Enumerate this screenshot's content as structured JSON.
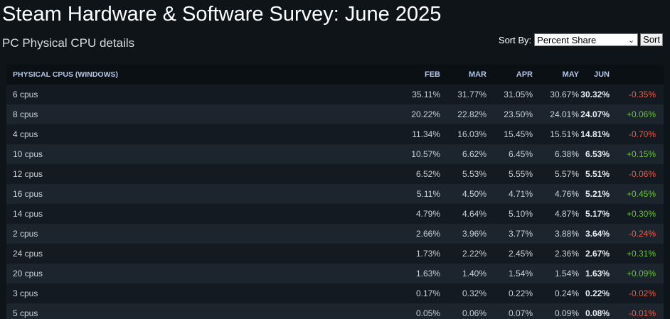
{
  "header": {
    "title": "Steam Hardware & Software Survey: June 2025",
    "subtitle": "PC Physical CPU details"
  },
  "sort": {
    "label": "Sort By:",
    "selected": "Percent Share",
    "button_label": "Sort"
  },
  "table": {
    "columns": {
      "name": "PHYSICAL CPUS (WINDOWS)",
      "feb": "FEB",
      "mar": "MAR",
      "apr": "APR",
      "may": "MAY",
      "jun": "JUN"
    },
    "rows": [
      {
        "name": "6 cpus",
        "feb": "35.11%",
        "mar": "31.77%",
        "apr": "31.05%",
        "may": "30.67%",
        "jun": "30.32%",
        "change": "-0.35%",
        "direction": "neg"
      },
      {
        "name": "8 cpus",
        "feb": "20.22%",
        "mar": "22.82%",
        "apr": "23.50%",
        "may": "24.01%",
        "jun": "24.07%",
        "change": "+0.06%",
        "direction": "pos"
      },
      {
        "name": "4 cpus",
        "feb": "11.34%",
        "mar": "16.03%",
        "apr": "15.45%",
        "may": "15.51%",
        "jun": "14.81%",
        "change": "-0.70%",
        "direction": "neg"
      },
      {
        "name": "10 cpus",
        "feb": "10.57%",
        "mar": "6.62%",
        "apr": "6.45%",
        "may": "6.38%",
        "jun": "6.53%",
        "change": "+0.15%",
        "direction": "pos"
      },
      {
        "name": "12 cpus",
        "feb": "6.52%",
        "mar": "5.53%",
        "apr": "5.55%",
        "may": "5.57%",
        "jun": "5.51%",
        "change": "-0.06%",
        "direction": "neg"
      },
      {
        "name": "16 cpus",
        "feb": "5.11%",
        "mar": "4.50%",
        "apr": "4.71%",
        "may": "4.76%",
        "jun": "5.21%",
        "change": "+0.45%",
        "direction": "pos"
      },
      {
        "name": "14 cpus",
        "feb": "4.79%",
        "mar": "4.64%",
        "apr": "5.10%",
        "may": "4.87%",
        "jun": "5.17%",
        "change": "+0.30%",
        "direction": "pos"
      },
      {
        "name": "2 cpus",
        "feb": "2.66%",
        "mar": "3.96%",
        "apr": "3.77%",
        "may": "3.88%",
        "jun": "3.64%",
        "change": "-0.24%",
        "direction": "neg"
      },
      {
        "name": "24 cpus",
        "feb": "1.73%",
        "mar": "2.22%",
        "apr": "2.45%",
        "may": "2.36%",
        "jun": "2.67%",
        "change": "+0.31%",
        "direction": "pos"
      },
      {
        "name": "20 cpus",
        "feb": "1.63%",
        "mar": "1.40%",
        "apr": "1.54%",
        "may": "1.54%",
        "jun": "1.63%",
        "change": "+0.09%",
        "direction": "pos"
      },
      {
        "name": "3 cpus",
        "feb": "0.17%",
        "mar": "0.32%",
        "apr": "0.22%",
        "may": "0.24%",
        "jun": "0.22%",
        "change": "-0.02%",
        "direction": "neg"
      },
      {
        "name": "5 cpus",
        "feb": "0.05%",
        "mar": "0.06%",
        "apr": "0.07%",
        "may": "0.09%",
        "jun": "0.08%",
        "change": "-0.01%",
        "direction": "neg"
      }
    ]
  },
  "colors": {
    "positive": "#6dc23f",
    "negative": "#ef5b4b",
    "header_text": "#b3c6e8"
  }
}
